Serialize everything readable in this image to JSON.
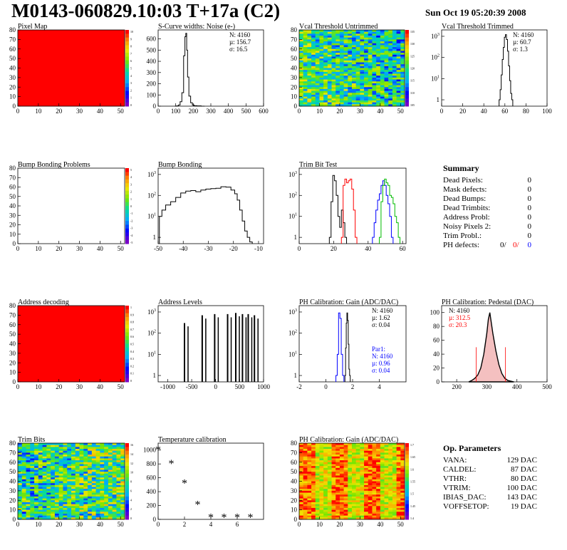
{
  "header": {
    "title": "M0143-060829.10:03 T+17a (C2)",
    "date": "Sun Oct 19 05:20:39 2008"
  },
  "colors": {
    "red": "#ff0000",
    "blue": "#0000ff",
    "green": "#00bb00",
    "black": "#000000",
    "map_red": "#ff0000"
  },
  "chart_data": [
    {
      "id": "pixel_map",
      "type": "heatmap",
      "title": "Pixel Map",
      "xlim": [
        0,
        52
      ],
      "ylim": [
        0,
        80
      ],
      "xticks": [
        0,
        10,
        20,
        30,
        40,
        50
      ],
      "yticks": [
        0,
        10,
        20,
        30,
        40,
        50,
        60,
        70,
        80
      ],
      "fill": "uniform",
      "zscale": [
        0,
        1,
        2,
        3,
        4,
        5,
        6,
        7,
        8,
        9,
        10
      ]
    },
    {
      "id": "scurve",
      "type": "line",
      "title": "S-Curve widths: Noise (e-)",
      "xlim": [
        0,
        600
      ],
      "ylim": [
        0,
        680
      ],
      "xticks": [
        0,
        100,
        200,
        300,
        400,
        500,
        600
      ],
      "yticks": [
        0,
        100,
        200,
        300,
        400,
        500,
        600
      ],
      "stats": {
        "n": "N: 4160",
        "mean": "µ: 156.7",
        "sigma": "σ: 16.5"
      },
      "x": [
        100,
        110,
        120,
        130,
        140,
        150,
        155,
        160,
        165,
        170,
        180,
        190,
        200,
        210,
        230,
        260
      ],
      "y": [
        0,
        2,
        10,
        40,
        120,
        450,
        620,
        650,
        500,
        260,
        90,
        30,
        10,
        4,
        2,
        0
      ]
    },
    {
      "id": "vcal_untrimmed",
      "type": "heatmap",
      "title": "Vcal Threshold Untrimmed",
      "xlim": [
        0,
        52
      ],
      "ylim": [
        0,
        80
      ],
      "xticks": [
        0,
        10,
        20,
        30,
        40,
        50
      ],
      "yticks": [
        0,
        10,
        20,
        30,
        40,
        50,
        60,
        70,
        80
      ],
      "fill": "noise",
      "zscale": [
        105,
        110,
        115,
        120,
        125,
        130,
        135
      ]
    },
    {
      "id": "vcal_trimmed",
      "type": "line",
      "logy": true,
      "title": "Vcal Threshold Trimmed",
      "xlim": [
        0,
        100
      ],
      "ylim": [
        0.5,
        2000
      ],
      "xticks": [
        0,
        20,
        40,
        60,
        80,
        100
      ],
      "stats": {
        "n": "N: 4160",
        "mean": "µ: 60.7",
        "sigma": "σ: 1.3"
      },
      "x": [
        55,
        56,
        57,
        58,
        59,
        60,
        61,
        62,
        63,
        64,
        65,
        66,
        67
      ],
      "y": [
        1,
        3,
        15,
        80,
        300,
        900,
        1200,
        700,
        200,
        40,
        8,
        2,
        1
      ]
    },
    {
      "id": "bump_problems",
      "type": "heatmap",
      "title": "Bump Bonding Problems",
      "xlim": [
        0,
        52
      ],
      "ylim": [
        0,
        80
      ],
      "xticks": [
        0,
        10,
        20,
        30,
        40,
        50
      ],
      "yticks": [
        0,
        10,
        20,
        30,
        40,
        50,
        60,
        70,
        80
      ],
      "fill": "empty",
      "zscale": [
        -5,
        -4,
        -3,
        -2,
        -1,
        0,
        1,
        2,
        3,
        4,
        5
      ]
    },
    {
      "id": "bump_bonding",
      "type": "line",
      "logy": true,
      "title": "Bump Bonding",
      "xlim": [
        -50,
        -8
      ],
      "ylim": [
        0.5,
        2000
      ],
      "xticks": [
        -50,
        -40,
        -30,
        -20,
        -10
      ],
      "x": [
        -49,
        -48,
        -46,
        -44,
        -42,
        -40,
        -38,
        -36,
        -34,
        -32,
        -30,
        -28,
        -26,
        -24,
        -22,
        -20,
        -19,
        -18,
        -17,
        -16,
        -15,
        -14,
        -13
      ],
      "y": [
        10,
        20,
        35,
        50,
        80,
        130,
        160,
        170,
        150,
        180,
        200,
        210,
        220,
        260,
        250,
        180,
        120,
        60,
        20,
        6,
        2,
        1,
        0.6
      ]
    },
    {
      "id": "trim_bit_test",
      "type": "line",
      "logy": true,
      "title": "Trim Bit Test",
      "xlim": [
        0,
        62
      ],
      "ylim": [
        0.5,
        2000
      ],
      "xticks": [
        0,
        20,
        40,
        60
      ],
      "series": [
        {
          "color": "#000000",
          "x": [
            18,
            19,
            20,
            21,
            22,
            23,
            24,
            25,
            26,
            27
          ],
          "y": [
            1,
            50,
            900,
            500,
            100,
            10,
            3,
            20,
            5,
            1
          ]
        },
        {
          "color": "#ff0000",
          "x": [
            25,
            26,
            27,
            28,
            29,
            30,
            31,
            32,
            33
          ],
          "y": [
            1,
            300,
            600,
            400,
            500,
            600,
            200,
            20,
            1
          ]
        },
        {
          "color": "#0000ff",
          "x": [
            43,
            44,
            45,
            46,
            47,
            48,
            49,
            50,
            51,
            52,
            53,
            54
          ],
          "y": [
            1,
            5,
            20,
            60,
            120,
            300,
            500,
            300,
            100,
            40,
            10,
            1
          ]
        },
        {
          "color": "#00bb00",
          "x": [
            47,
            48,
            49,
            50,
            51,
            52,
            53,
            54,
            55,
            56,
            57,
            58
          ],
          "y": [
            1,
            50,
            300,
            600,
            400,
            300,
            100,
            80,
            40,
            10,
            5,
            1
          ]
        }
      ]
    },
    {
      "id": "address_decoding",
      "type": "heatmap",
      "title": "Address decoding",
      "xlim": [
        0,
        52
      ],
      "ylim": [
        0,
        80
      ],
      "xticks": [
        0,
        10,
        20,
        30,
        40,
        50
      ],
      "yticks": [
        0,
        10,
        20,
        30,
        40,
        50,
        60,
        70,
        80
      ],
      "fill": "uniform",
      "zscale": [
        0,
        0.1,
        0.2,
        0.3,
        0.4,
        0.5,
        0.6,
        0.7,
        0.8,
        0.9,
        1
      ]
    },
    {
      "id": "address_levels",
      "type": "bar",
      "logy": true,
      "title": "Address Levels",
      "xlim": [
        -1200,
        1000
      ],
      "ylim": [
        0.5,
        2000
      ],
      "xticks": [
        -1000,
        -500,
        0,
        500,
        1000
      ],
      "x": [
        -650,
        -280,
        -20,
        250,
        420,
        560,
        680,
        810
      ],
      "values": [
        300,
        700,
        800,
        800,
        900,
        800,
        800,
        700
      ]
    },
    {
      "id": "ph_gain",
      "type": "line",
      "logy": true,
      "title": "PH Calibration: Gain (ADC/DAC)",
      "xlim": [
        -2,
        6
      ],
      "ylim": [
        0.5,
        2000
      ],
      "xticks": [
        -2,
        0,
        2,
        4
      ],
      "stats": {
        "n": "N: 4160",
        "mean": "µ: 1.62",
        "sigma": "σ: 0.04"
      },
      "par": {
        "name": "Par1:",
        "n": "N: 4160",
        "mean": "µ: 0.96",
        "sigma": "σ: 0.04"
      },
      "series": [
        {
          "color": "#0000ff",
          "x": [
            0.8,
            0.9,
            1.0,
            1.1,
            1.2,
            1.3
          ],
          "y": [
            1,
            10,
            900,
            500,
            10,
            1
          ]
        },
        {
          "color": "#000000",
          "x": [
            1.45,
            1.5,
            1.55,
            1.6,
            1.65,
            1.7,
            1.75,
            1.8
          ],
          "y": [
            1,
            20,
            300,
            900,
            400,
            30,
            2,
            1
          ]
        }
      ]
    },
    {
      "id": "ph_pedestal",
      "type": "line",
      "title": "PH Calibration: Pedestal (DAC)",
      "xlim": [
        150,
        500
      ],
      "ylim": [
        0,
        110
      ],
      "xticks": [
        200,
        300,
        400,
        500
      ],
      "yticks": [
        0,
        20,
        40,
        60,
        80,
        100
      ],
      "stats": {
        "n": "N: 4160",
        "mean": "µ: 312.5",
        "sigma": "σ: 20.3"
      },
      "x": [
        240,
        250,
        260,
        270,
        280,
        290,
        300,
        305,
        310,
        315,
        320,
        330,
        340,
        350,
        360,
        370,
        380,
        390
      ],
      "y": [
        0,
        2,
        5,
        10,
        20,
        40,
        70,
        90,
        100,
        85,
        70,
        45,
        25,
        12,
        5,
        2,
        1,
        0
      ]
    },
    {
      "id": "trim_bits",
      "type": "heatmap",
      "title": "Trim Bits",
      "xlim": [
        0,
        52
      ],
      "ylim": [
        0,
        80
      ],
      "xticks": [
        0,
        10,
        20,
        30,
        40,
        50
      ],
      "yticks": [
        0,
        10,
        20,
        30,
        40,
        50,
        60,
        70,
        80
      ],
      "fill": "noise2",
      "zscale": [
        0,
        2,
        4,
        6,
        8,
        10,
        12,
        14,
        16
      ]
    },
    {
      "id": "temperature",
      "type": "scatter",
      "title": "Temperature calibration",
      "xlim": [
        0,
        8
      ],
      "ylim": [
        0,
        1100
      ],
      "xticks": [
        0,
        2,
        4,
        6
      ],
      "yticks": [
        0,
        200,
        400,
        600,
        800,
        1000
      ],
      "x": [
        0,
        1,
        2,
        3,
        4,
        5,
        6,
        7
      ],
      "y": [
        1000,
        800,
        520,
        210,
        25,
        25,
        25,
        25
      ]
    },
    {
      "id": "ph_gain_map",
      "type": "heatmap",
      "title": "PH Calibration: Gain (ADC/DAC)",
      "xlim": [
        0,
        52
      ],
      "ylim": [
        0,
        80
      ],
      "xticks": [
        0,
        10,
        20,
        30,
        40,
        50
      ],
      "yticks": [
        0,
        10,
        20,
        30,
        40,
        50,
        60,
        70,
        80
      ],
      "fill": "stripes",
      "zscale": [
        1.4,
        1.45,
        1.5,
        1.55,
        1.6,
        1.65,
        1.7
      ]
    }
  ],
  "summary": {
    "title": "Summary",
    "rows": [
      {
        "label": "Dead Pixels:",
        "value": "0"
      },
      {
        "label": "Mask defects:",
        "value": "0"
      },
      {
        "label": "Dead Bumps:",
        "value": "0"
      },
      {
        "label": "Dead Trimbits:",
        "value": "0"
      },
      {
        "label": "Address Probl:",
        "value": "0"
      },
      {
        "label": "Noisy Pixels 2:",
        "value": "0"
      },
      {
        "label": "Trim Probl.:",
        "value": "0"
      }
    ],
    "ph_label": "PH defects:",
    "ph_values": [
      "0/",
      "0/",
      "0"
    ]
  },
  "op_params": {
    "title": "Op. Parameters",
    "rows": [
      {
        "label": "VANA:",
        "value": "129 DAC"
      },
      {
        "label": "CALDEL:",
        "value": "87 DAC"
      },
      {
        "label": "VTHR:",
        "value": "80 DAC"
      },
      {
        "label": "VTRIM:",
        "value": "100 DAC"
      },
      {
        "label": "IBIAS_DAC:",
        "value": "143 DAC"
      },
      {
        "label": "VOFFSETOP:",
        "value": "19 DAC"
      }
    ]
  }
}
